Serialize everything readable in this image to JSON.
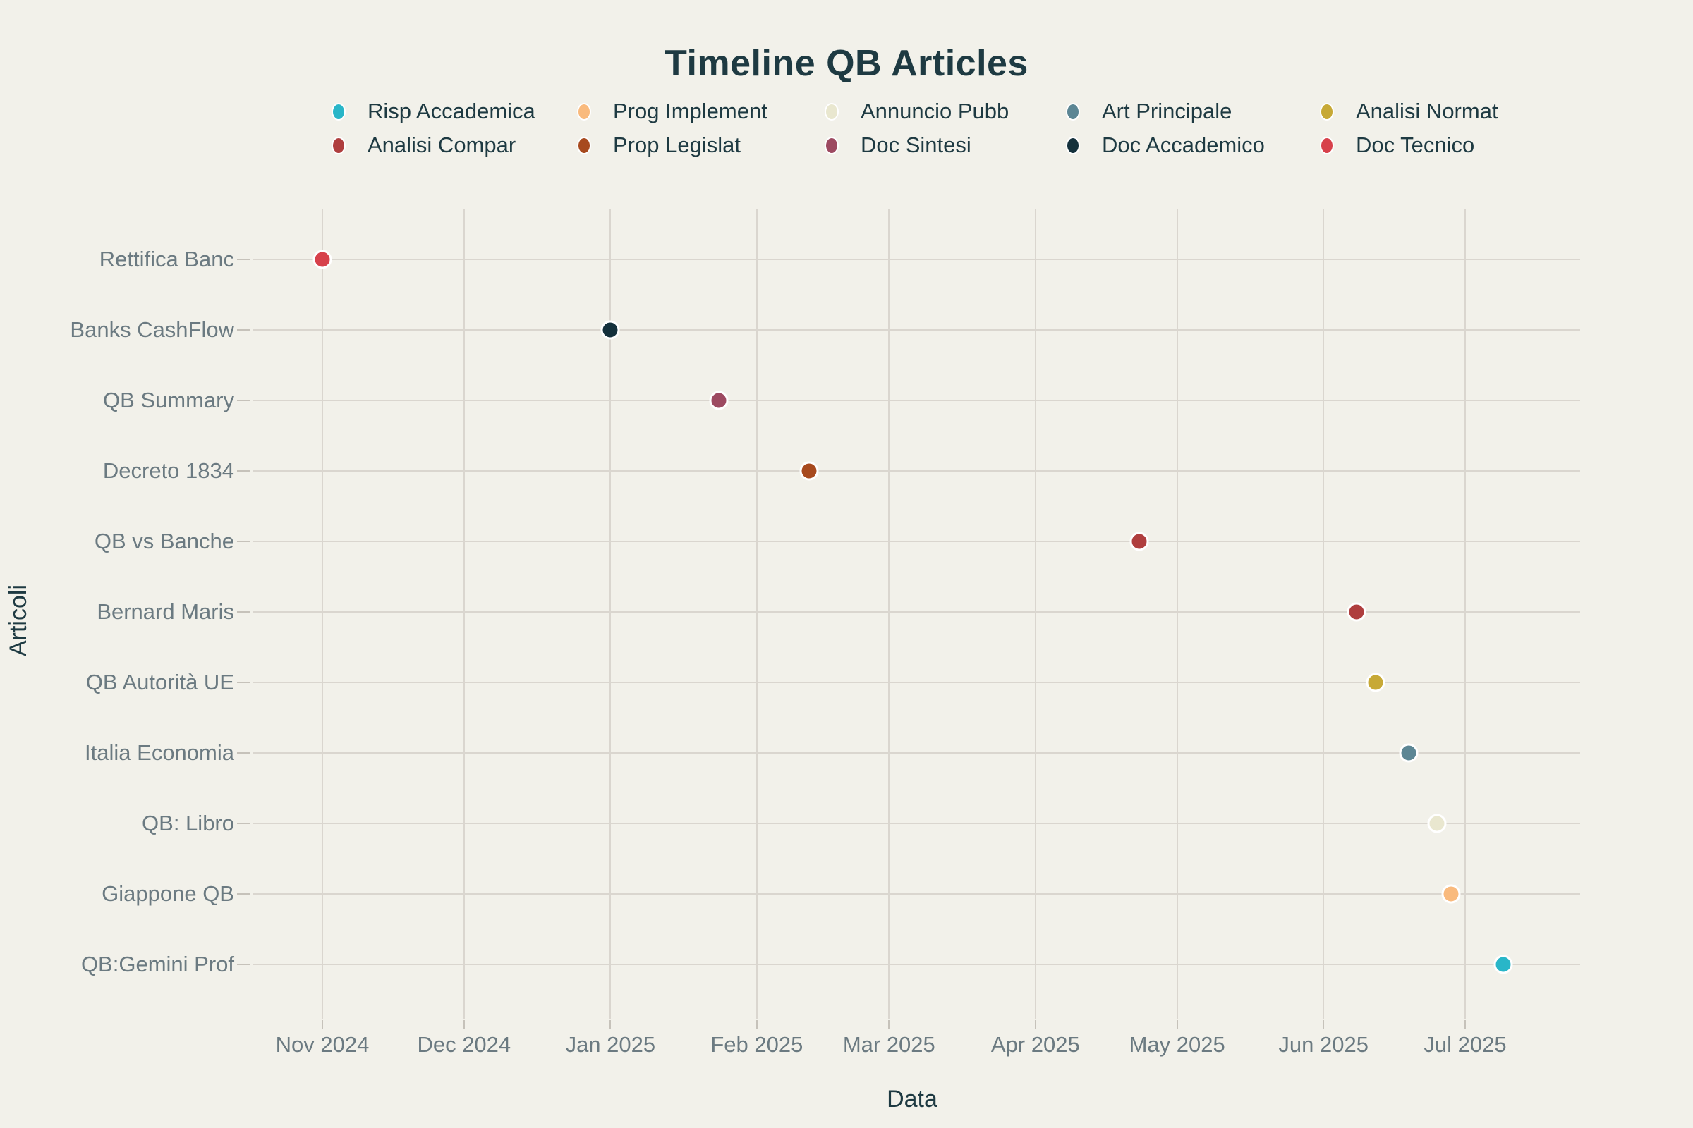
{
  "title": "Timeline QB Articles",
  "x_axis": {
    "label": "Data"
  },
  "y_axis": {
    "label": "Articoli"
  },
  "palette": {
    "background": "#f2f1ea",
    "gridline": "#dad6cf",
    "tick_mark": "#c6c2ba",
    "tick_label_text": "#6b7a81",
    "heading_text": "#1e3a42",
    "marker_outline": "#ffffff"
  },
  "chart_data": {
    "type": "scatter",
    "title": "Timeline QB Articles",
    "xlabel": "Data",
    "ylabel": "Articoli",
    "legend_position": "top",
    "grid": true,
    "x_range": [
      "2024-11-01",
      "2025-07-01"
    ],
    "x_ticks": [
      {
        "label": "Nov 2024",
        "date": "2024-11-01"
      },
      {
        "label": "Dec 2024",
        "date": "2024-12-01"
      },
      {
        "label": "Jan 2025",
        "date": "2025-01-01"
      },
      {
        "label": "Feb 2025",
        "date": "2025-02-01"
      },
      {
        "label": "Mar 2025",
        "date": "2025-03-01"
      },
      {
        "label": "Apr 2025",
        "date": "2025-04-01"
      },
      {
        "label": "May 2025",
        "date": "2025-05-01"
      },
      {
        "label": "Jun 2025",
        "date": "2025-06-01"
      },
      {
        "label": "Jul 2025",
        "date": "2025-07-01"
      }
    ],
    "categories": [
      "Rettifica Banc",
      "Banks CashFlow",
      "QB Summary",
      "Decreto 1834",
      "QB vs Banche",
      "Bernard Maris",
      "QB Autorità UE",
      "Italia Economia",
      "QB: Libro",
      "Giappone QB",
      "QB:Gemini Prof"
    ],
    "legend_order": [
      "Risp Accademica",
      "Prog Implement",
      "Annuncio Pubb",
      "Art Principale",
      "Analisi Normat",
      "Analisi Compar",
      "Prop Legislat",
      "Doc Sintesi",
      "Doc Accademico",
      "Doc Tecnico"
    ],
    "series_colors": {
      "Risp Accademica": "#29b6c8",
      "Prog Implement": "#f9ba7d",
      "Annuncio Pubb": "#e9e7cf",
      "Art Principale": "#5c8694",
      "Analisi Normat": "#c7a936",
      "Analisi Compar": "#af3e3e",
      "Prop Legislat": "#a74a1e",
      "Doc Sintesi": "#9d4a61",
      "Doc Accademico": "#14313c",
      "Doc Tecnico": "#d7414b"
    },
    "points": [
      {
        "article": "Rettifica Banc",
        "series": "Doc Tecnico",
        "date": "2024-11-01"
      },
      {
        "article": "Banks CashFlow",
        "series": "Doc Accademico",
        "date": "2025-01-01"
      },
      {
        "article": "QB Summary",
        "series": "Doc Sintesi",
        "date": "2025-01-24"
      },
      {
        "article": "Decreto 1834",
        "series": "Prop Legislat",
        "date": "2025-02-12"
      },
      {
        "article": "QB vs Banche",
        "series": "Analisi Compar",
        "date": "2025-04-23"
      },
      {
        "article": "Bernard Maris",
        "series": "Analisi Compar",
        "date": "2025-06-08"
      },
      {
        "article": "QB Autorità UE",
        "series": "Analisi Normat",
        "date": "2025-06-12"
      },
      {
        "article": "Italia Economia",
        "series": "Art Principale",
        "date": "2025-06-19"
      },
      {
        "article": "QB: Libro",
        "series": "Annuncio Pubb",
        "date": "2025-06-25"
      },
      {
        "article": "Giappone QB",
        "series": "Prog Implement",
        "date": "2025-06-28"
      },
      {
        "article": "QB:Gemini Prof",
        "series": "Risp Accademica",
        "date": "2025-07-09"
      }
    ]
  }
}
